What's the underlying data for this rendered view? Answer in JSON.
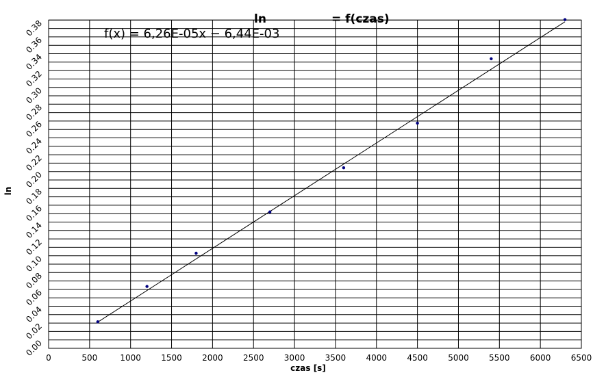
{
  "chart_data": {
    "type": "scatter",
    "title_left": "ln",
    "title_right": "= f(czas)",
    "equation": "f(x) = 6,26E-05x − 6,44E-03",
    "xlabel": "czas [s]",
    "ylabel": "ln",
    "xlim": [
      0,
      6500
    ],
    "ylim": [
      0,
      0.39
    ],
    "x_ticks": [
      "0",
      "500",
      "1000",
      "1500",
      "2000",
      "2500",
      "3000",
      "3500",
      "4000",
      "4500",
      "5000",
      "5500",
      "6000",
      "6500"
    ],
    "y_ticks": [
      "0.00",
      "0.02",
      "0.04",
      "0.06",
      "0.08",
      "0.10",
      "0.12",
      "0.14",
      "0.16",
      "0.18",
      "0.20",
      "0.22",
      "0.24",
      "0.26",
      "0.28",
      "0.30",
      "0.32",
      "0.34",
      "0.36",
      "0.38"
    ],
    "grid": true,
    "series": [
      {
        "x": [
          600,
          1200,
          1800,
          2700,
          3600,
          4500,
          5400,
          6300
        ],
        "y": [
          0.0315,
          0.0735,
          0.113,
          0.162,
          0.2145,
          0.2675,
          0.344,
          0.3905
        ]
      }
    ],
    "trendline": {
      "slope": 6.26e-05,
      "intercept": -0.00644,
      "x_range": [
        600,
        6300
      ]
    },
    "colors": {
      "points": "#000080",
      "line": "#000000",
      "grid": "#000000"
    }
  }
}
